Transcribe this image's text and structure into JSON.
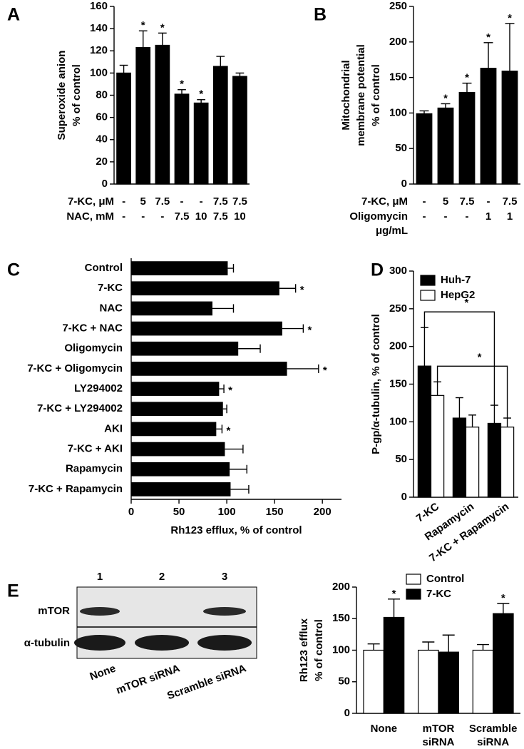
{
  "chart_data": [
    {
      "type": "bar",
      "panel_label": "A",
      "ylabel": [
        "Superoxide anion",
        "% of control"
      ],
      "values": [
        100,
        123,
        125,
        81,
        73,
        106,
        97
      ],
      "errors": [
        7,
        15,
        11,
        4,
        3,
        9,
        3
      ],
      "significance": [
        null,
        "*",
        "*",
        "*",
        "*",
        null,
        null
      ],
      "color": "#000000",
      "ylim": [
        0,
        160
      ],
      "yticks": [
        0,
        20,
        40,
        60,
        80,
        100,
        120,
        140,
        160
      ],
      "table_rows": [
        {
          "label": [
            "7-KC, μM"
          ],
          "cells": [
            "-",
            "5",
            "7.5",
            "-",
            "-",
            "7.5",
            "7.5"
          ]
        },
        {
          "label": [
            "NAC, mM"
          ],
          "cells": [
            "-",
            "-",
            "-",
            "7.5",
            "10",
            "7.5",
            "10"
          ]
        }
      ]
    },
    {
      "type": "bar",
      "panel_label": "B",
      "ylabel": [
        "Mitochondrial",
        "membrane potential",
        "% of control"
      ],
      "values": [
        99,
        107,
        129,
        163,
        159
      ],
      "errors": [
        4,
        6,
        13,
        36,
        67
      ],
      "significance": [
        null,
        "*",
        "*",
        "*",
        "*"
      ],
      "color": "#000000",
      "ylim": [
        0,
        250
      ],
      "yticks": [
        0,
        50,
        100,
        150,
        200,
        250
      ],
      "table_rows": [
        {
          "label": [
            "7-KC, μM"
          ],
          "cells": [
            "-",
            "5",
            "7.5",
            "-",
            "7.5"
          ]
        },
        {
          "label": [
            "Oligomycin",
            "μg/mL"
          ],
          "cells": [
            "-",
            "-",
            "-",
            "1",
            "1"
          ]
        }
      ]
    },
    {
      "type": "barh",
      "panel_label": "C",
      "xlabel": "Rh123 efflux, % of control",
      "categories": [
        "Control",
        "7-KC",
        "NAC",
        "7-KC + NAC",
        "Oligomycin",
        "7-KC + Oligomycin",
        "LY294002",
        "7-KC + LY294002",
        "AKI",
        "7-KC + AKI",
        "Rapamycin",
        "7-KC + Rapamycin"
      ],
      "values": [
        101,
        155,
        85,
        158,
        112,
        163,
        92,
        96,
        89,
        98,
        103,
        104
      ],
      "errors": [
        6,
        17,
        22,
        22,
        23,
        33,
        5,
        4,
        6,
        19,
        18,
        19
      ],
      "significance": [
        null,
        "*",
        null,
        "*",
        null,
        "*",
        "*",
        null,
        "*",
        null,
        null,
        null
      ],
      "color": "#000000",
      "xlim": [
        0,
        220
      ],
      "xticks": [
        0,
        50,
        100,
        150,
        200
      ]
    },
    {
      "type": "grouped-bar",
      "panel_label": "D",
      "ylabel": [
        "P-gp/α-tubulin, % of control"
      ],
      "categories": [
        "7-KC",
        "Rapamycin",
        "7-KC + Rapamycin"
      ],
      "series": [
        {
          "name": "Huh-7",
          "color": "#000000",
          "values": [
            174,
            105,
            98
          ],
          "errors": [
            51,
            27,
            24
          ]
        },
        {
          "name": "HepG2",
          "color": "#ffffff",
          "values": [
            135,
            93,
            93
          ],
          "errors": [
            18,
            16,
            12
          ]
        }
      ],
      "annotations": [
        "*",
        "*"
      ],
      "legend": "upper left",
      "ylim": [
        0,
        300
      ],
      "yticks": [
        0,
        50,
        100,
        150,
        200,
        250,
        300
      ]
    },
    {
      "type": "grouped-bar",
      "ylabel": [
        "Rh123 efflux",
        "% of control"
      ],
      "categories": [
        [
          "None"
        ],
        [
          "mTOR",
          "siRNA"
        ],
        [
          "Scramble",
          "siRNA"
        ]
      ],
      "series": [
        {
          "name": "Control",
          "color": "#ffffff",
          "values": [
            100,
            100,
            100
          ],
          "errors": [
            10,
            13,
            9
          ],
          "significance": [
            null,
            null,
            null
          ]
        },
        {
          "name": "7-KC",
          "color": "#000000",
          "values": [
            152,
            97,
            158
          ],
          "errors": [
            29,
            27,
            16
          ],
          "significance": [
            "*",
            null,
            "*"
          ]
        }
      ],
      "legend": "top",
      "ylim": [
        0,
        200
      ],
      "yticks": [
        0,
        50,
        100,
        150,
        200
      ]
    }
  ],
  "blot": {
    "label": "E",
    "lanes": [
      "1",
      "2",
      "3"
    ],
    "rows": [
      "mTOR",
      "α-tubulin"
    ],
    "samples": [
      "None",
      "mTOR siRNA",
      "Scramble siRNA"
    ]
  }
}
